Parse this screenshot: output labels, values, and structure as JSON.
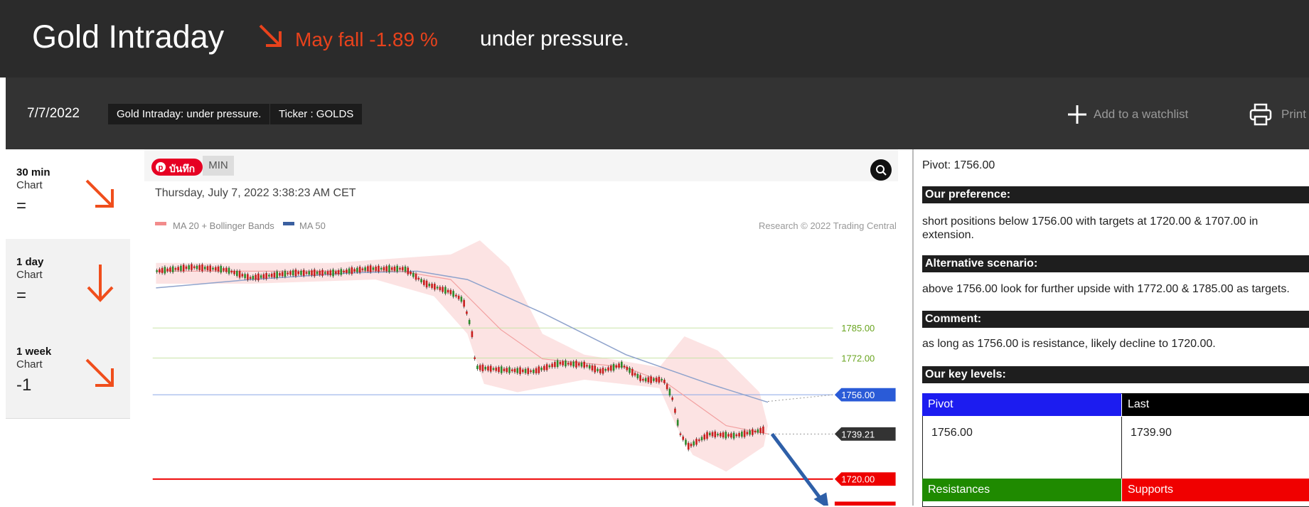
{
  "header": {
    "title": "Gold Intraday",
    "change": "May fall -1.89 %",
    "subtitle": "under pressure."
  },
  "toolbar": {
    "date": "7/7/2022",
    "tags": [
      "Gold Intraday: under pressure.",
      "Ticker : GOLDS"
    ],
    "watchlist": "Add to a watchlist",
    "print": "Print"
  },
  "sidebar": [
    {
      "period": "30 min",
      "label": "Chart",
      "status": "="
    },
    {
      "period": "1 day",
      "label": "Chart",
      "status": "="
    },
    {
      "period": "1 week",
      "label": "Chart",
      "status": "-1"
    }
  ],
  "chart": {
    "save_button": "บันทึก",
    "period": "MIN",
    "timestamp": "Thursday, July 7, 2022 3:38:23 AM CET",
    "legend": [
      "MA 20 + Bollinger Bands",
      "MA 50"
    ],
    "copyright": "Research © 2022 Trading Central",
    "levels": [
      "1785.00",
      "1772.00",
      "1756.00",
      "1739.21",
      "1720.00"
    ]
  },
  "analysis": {
    "pivot": "Pivot: 1756.00",
    "sections": [
      {
        "heading": "Our preference:",
        "text": "short positions below 1756.00 with targets at 1720.00 & 1707.00 in extension."
      },
      {
        "heading": "Alternative scenario:",
        "text": "above 1756.00 look for further upside with 1772.00 & 1785.00 as targets."
      },
      {
        "heading": "Comment:",
        "text": "as long as 1756.00 is resistance, likely decline to 1720.00."
      }
    ],
    "key_levels": {
      "heading": "Our key levels:",
      "columns": [
        "Pivot",
        "Last"
      ],
      "values": [
        "1756.00",
        "1739.90"
      ],
      "footer": [
        "Resistances",
        "Supports"
      ]
    }
  }
}
